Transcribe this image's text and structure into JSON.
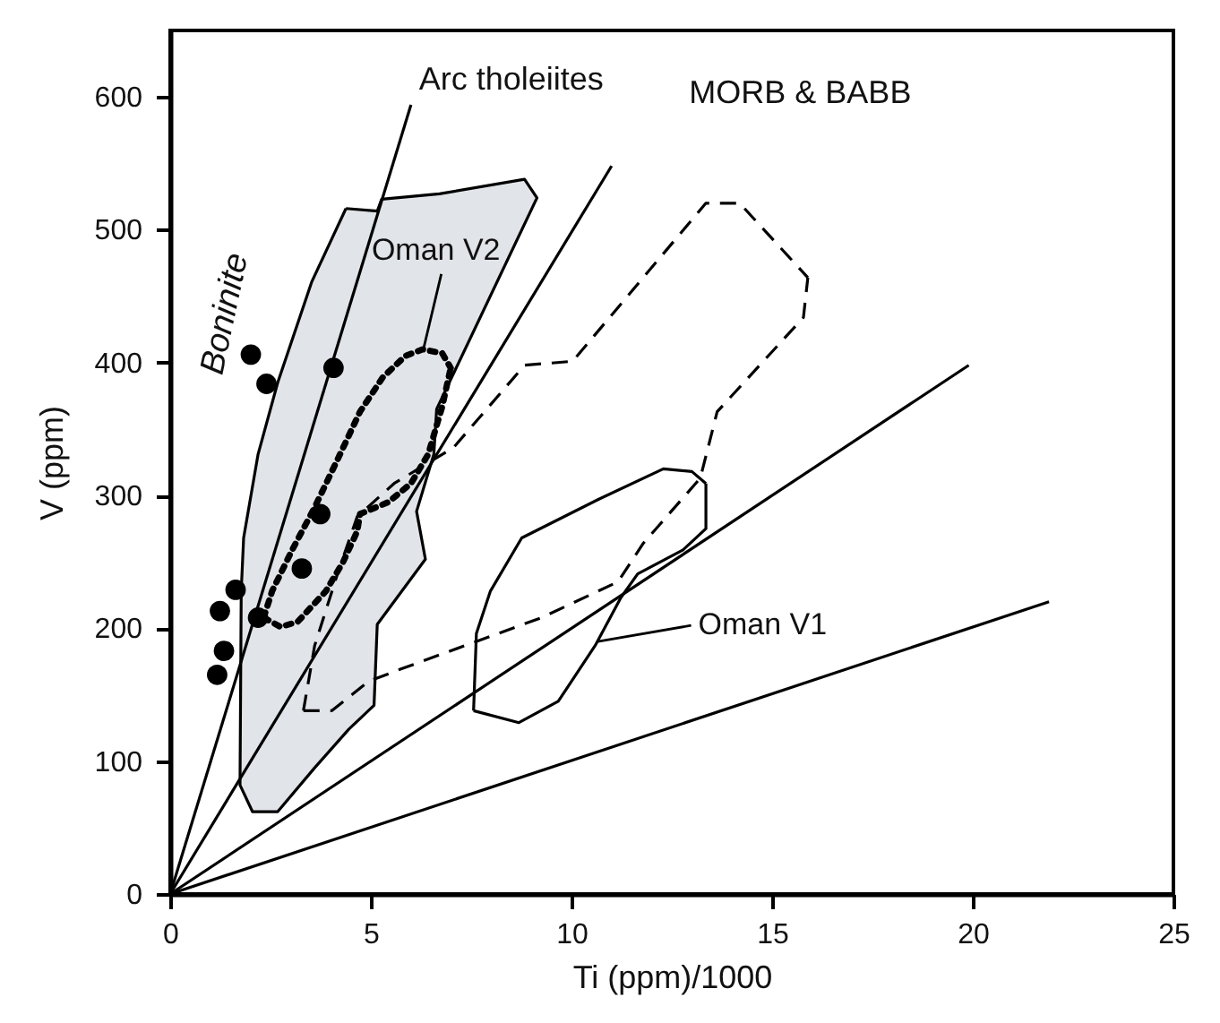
{
  "chart_data": {
    "type": "scatter",
    "xlabel": "Ti (ppm)/1000",
    "ylabel": "V (ppm)",
    "xlim": [
      0,
      25
    ],
    "ylim": [
      0,
      650
    ],
    "xticks": [
      0,
      5,
      10,
      15,
      20,
      25
    ],
    "yticks": [
      0,
      100,
      200,
      300,
      400,
      500,
      600
    ],
    "annotations": [
      "Arc tholeiites",
      "MORB & BABB",
      "Boninite",
      {
        "text": "Oman V2",
        "x": 6.31,
        "y": 410
      },
      {
        "text": "Oman V1",
        "x": 10.66,
        "y": 190
      }
    ],
    "series": [
      {
        "type": "area",
        "color": "#e1e4e8",
        "marker": "none",
        "x": [
          4.38,
          5.16,
          5.27,
          6.71,
          8.83,
          9.14,
          6.64,
          6.57,
          6.14,
          6.36,
          5.16,
          5.08,
          4.45,
          3.6,
          2.68,
          2.05,
          1.74,
          1.77,
          1.83,
          2.19,
          2.68,
          3.53,
          4.38
        ],
        "values": [
          516,
          514,
          523,
          527,
          538,
          524,
          365,
          331,
          288,
          252,
          203,
          142,
          124,
          95,
          62,
          62,
          82,
          228,
          268,
          331,
          385,
          461,
          516
        ]
      },
      {
        "type": "line",
        "color": "#000000",
        "marker": "none",
        "x": [
          0,
          6.0
        ],
        "values": [
          0,
          594
        ]
      },
      {
        "type": "line",
        "color": "#000000",
        "marker": "none",
        "x": [
          0,
          11.0
        ],
        "values": [
          0,
          548
        ]
      },
      {
        "type": "line",
        "color": "#000000",
        "marker": "none",
        "x": [
          0,
          19.9
        ],
        "values": [
          0,
          398
        ]
      },
      {
        "type": "line",
        "color": "#000000",
        "marker": "none",
        "x": [
          0,
          21.9
        ],
        "values": [
          0,
          220
        ]
      },
      {
        "type": "line",
        "color": "#000000",
        "marker": "none",
        "line_style": "dotted",
        "x": [
          2.33,
          2.54,
          3.04,
          3.6,
          4.17,
          4.73,
          5.3,
          5.86,
          6.29,
          6.78,
          6.99
        ],
        "values": [
          208,
          228,
          259,
          291,
          327,
          363,
          389,
          405,
          410,
          407,
          396
        ]
      },
      {
        "type": "line",
        "color": "#000000",
        "marker": "none",
        "line_style": "dotted",
        "x": [
          2.33,
          2.75,
          3.18,
          3.88,
          4.31,
          4.66,
          4.73,
          5.44,
          6.0,
          6.43,
          6.78,
          6.99
        ],
        "values": [
          208,
          201,
          205,
          228,
          250,
          273,
          286,
          295,
          309,
          331,
          367,
          396
        ]
      },
      {
        "type": "line",
        "color": "#000000",
        "marker": "none",
        "line_style": "dashed",
        "x": [
          3.32,
          3.6,
          4.17,
          4.66,
          5.58,
          7.06,
          8.83,
          10.03,
          13.35,
          14.19,
          15.89
        ],
        "values": [
          138,
          187,
          241,
          284,
          309,
          336,
          398,
          401,
          520,
          520,
          464
        ]
      },
      {
        "type": "line",
        "color": "#000000",
        "marker": "none",
        "line_style": "dashed",
        "x": [
          3.32,
          4.03,
          4.94,
          5.72,
          9.25,
          11.16,
          11.79,
          13.21,
          13.63,
          15.78,
          15.89
        ],
        "values": [
          138,
          138,
          160,
          169,
          208,
          235,
          264,
          313,
          363,
          434,
          464
        ]
      },
      {
        "type": "line",
        "color": "#000000",
        "marker": "none",
        "x": [
          7.56,
          7.63,
          7.98,
          8.76,
          10.67,
          12.29,
          13.0,
          13.35
        ],
        "values": [
          138,
          196,
          228,
          268,
          297,
          320,
          318,
          309
        ]
      },
      {
        "type": "line",
        "color": "#000000",
        "marker": "none",
        "x": [
          7.56,
          8.69,
          9.67,
          10.59,
          11.23,
          11.65,
          12.78,
          13.35,
          13.35
        ],
        "values": [
          138,
          129,
          145,
          187,
          223,
          241,
          259,
          275,
          309
        ]
      },
      {
        "color": "#000000",
        "marker": "circle",
        "x": [
          2.01,
          2.4,
          4.07,
          3.74,
          3.28,
          1.63,
          1.24,
          2.19,
          1.34,
          1.17
        ],
        "values": [
          406,
          384,
          396,
          286,
          245,
          229,
          213,
          208,
          183,
          165
        ]
      }
    ]
  }
}
